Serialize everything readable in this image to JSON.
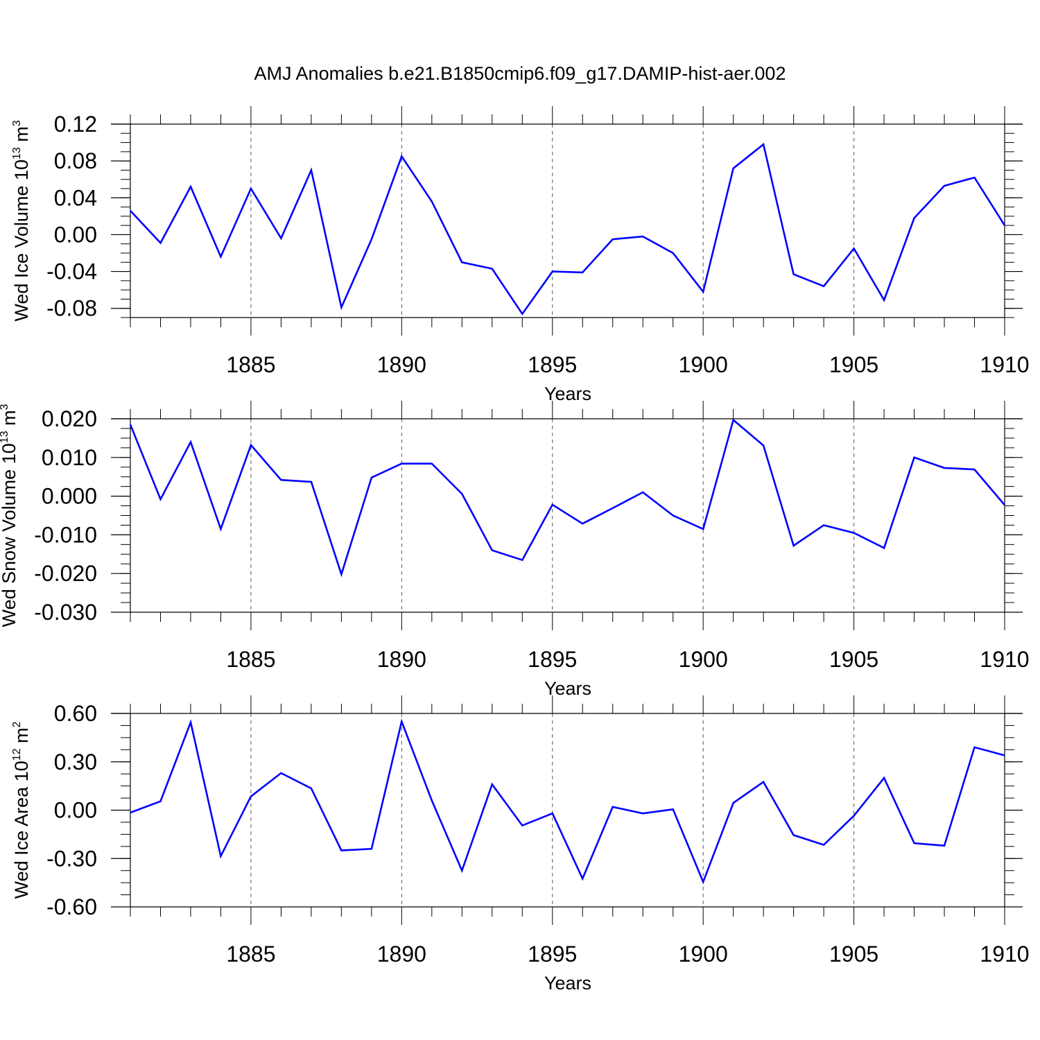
{
  "title": "AMJ Anomalies b.e21.B1850cmip6.f09_g17.DAMIP-hist-aer.002",
  "chart_data": [
    {
      "type": "line",
      "name": "ice-volume",
      "ylabel": "Wed Ice Volume 10",
      "ylabel_sup": "13",
      "ylabel_unit": " m",
      "ylabel_unit_sup": "3",
      "xlabel": "Years",
      "xlim": [
        1881,
        1910
      ],
      "ylim": [
        -0.09,
        0.12
      ],
      "yticks": [
        -0.08,
        -0.04,
        0.0,
        0.04,
        0.08,
        0.12
      ],
      "ytick_labels": [
        "-0.08",
        "-0.04",
        "0.00",
        "0.04",
        "0.08",
        "0.12"
      ],
      "xticks": [
        1885,
        1890,
        1895,
        1900,
        1905,
        1910
      ],
      "xtick_labels": [
        "1885",
        "1890",
        "1895",
        "1900",
        "1905",
        "1910"
      ],
      "x": [
        1881,
        1882,
        1883,
        1884,
        1885,
        1886,
        1887,
        1888,
        1889,
        1890,
        1891,
        1892,
        1893,
        1894,
        1895,
        1896,
        1897,
        1898,
        1899,
        1900,
        1901,
        1902,
        1903,
        1904,
        1905,
        1906,
        1907,
        1908,
        1909,
        1910
      ],
      "y": [
        0.026,
        -0.009,
        0.052,
        -0.024,
        0.05,
        -0.004,
        0.07,
        -0.079,
        -0.005,
        0.085,
        0.036,
        -0.03,
        -0.037,
        -0.086,
        -0.04,
        -0.041,
        -0.005,
        -0.002,
        -0.02,
        -0.062,
        0.072,
        0.098,
        -0.043,
        -0.056,
        -0.015,
        -0.071,
        0.018,
        0.053,
        0.062,
        0.01
      ],
      "grid": "dashed vertical at major x ticks",
      "color": "#0000ff"
    },
    {
      "type": "line",
      "name": "snow-volume",
      "ylabel": "Wed Snow Volume 10",
      "ylabel_sup": "13",
      "ylabel_unit": " m",
      "ylabel_unit_sup": "3",
      "xlabel": "Years",
      "xlim": [
        1881,
        1910
      ],
      "ylim": [
        -0.03,
        0.02
      ],
      "yticks": [
        -0.03,
        -0.02,
        -0.01,
        0.0,
        0.01,
        0.02
      ],
      "ytick_labels": [
        "-0.030",
        "-0.020",
        "-0.010",
        "0.000",
        "0.010",
        "0.020"
      ],
      "xticks": [
        1885,
        1890,
        1895,
        1900,
        1905,
        1910
      ],
      "xtick_labels": [
        "1885",
        "1890",
        "1895",
        "1900",
        "1905",
        "1910"
      ],
      "x": [
        1881,
        1882,
        1883,
        1884,
        1885,
        1886,
        1887,
        1888,
        1889,
        1890,
        1891,
        1892,
        1893,
        1894,
        1895,
        1896,
        1897,
        1898,
        1899,
        1900,
        1901,
        1902,
        1903,
        1904,
        1905,
        1906,
        1907,
        1908,
        1909,
        1910
      ],
      "y": [
        0.0185,
        -0.0008,
        0.014,
        -0.0085,
        0.0132,
        0.0042,
        0.0037,
        -0.0202,
        0.0048,
        0.0084,
        0.0084,
        0.0006,
        -0.014,
        -0.0165,
        -0.0022,
        -0.0071,
        -0.0031,
        0.001,
        -0.005,
        -0.0085,
        0.0197,
        0.0131,
        -0.0128,
        -0.0075,
        -0.0095,
        -0.0134,
        0.01,
        0.0073,
        0.0069,
        -0.0023
      ],
      "grid": "dashed vertical at major x ticks",
      "color": "#0000ff"
    },
    {
      "type": "line",
      "name": "ice-area",
      "ylabel": "Wed Ice Area 10",
      "ylabel_sup": "12",
      "ylabel_unit": " m",
      "ylabel_unit_sup": "2",
      "xlabel": "Years",
      "xlim": [
        1881,
        1910
      ],
      "ylim": [
        -0.6,
        0.6
      ],
      "yticks": [
        -0.6,
        -0.3,
        0.0,
        0.3,
        0.6
      ],
      "ytick_labels": [
        "-0.60",
        "-0.30",
        "0.00",
        "0.30",
        "0.60"
      ],
      "xticks": [
        1885,
        1890,
        1895,
        1900,
        1905,
        1910
      ],
      "xtick_labels": [
        "1885",
        "1890",
        "1895",
        "1900",
        "1905",
        "1910"
      ],
      "x": [
        1881,
        1882,
        1883,
        1884,
        1885,
        1886,
        1887,
        1888,
        1889,
        1890,
        1891,
        1892,
        1893,
        1894,
        1895,
        1896,
        1897,
        1898,
        1899,
        1900,
        1901,
        1902,
        1903,
        1904,
        1905,
        1906,
        1907,
        1908,
        1909,
        1910
      ],
      "y": [
        -0.015,
        0.055,
        0.545,
        -0.285,
        0.085,
        0.23,
        0.135,
        -0.25,
        -0.24,
        0.55,
        0.06,
        -0.375,
        0.16,
        -0.095,
        -0.02,
        -0.425,
        0.02,
        -0.02,
        0.005,
        -0.445,
        0.045,
        0.175,
        -0.155,
        -0.215,
        -0.035,
        0.2,
        -0.205,
        -0.22,
        0.39,
        0.34
      ],
      "grid": "dashed vertical at major x ticks",
      "color": "#0000ff"
    }
  ]
}
